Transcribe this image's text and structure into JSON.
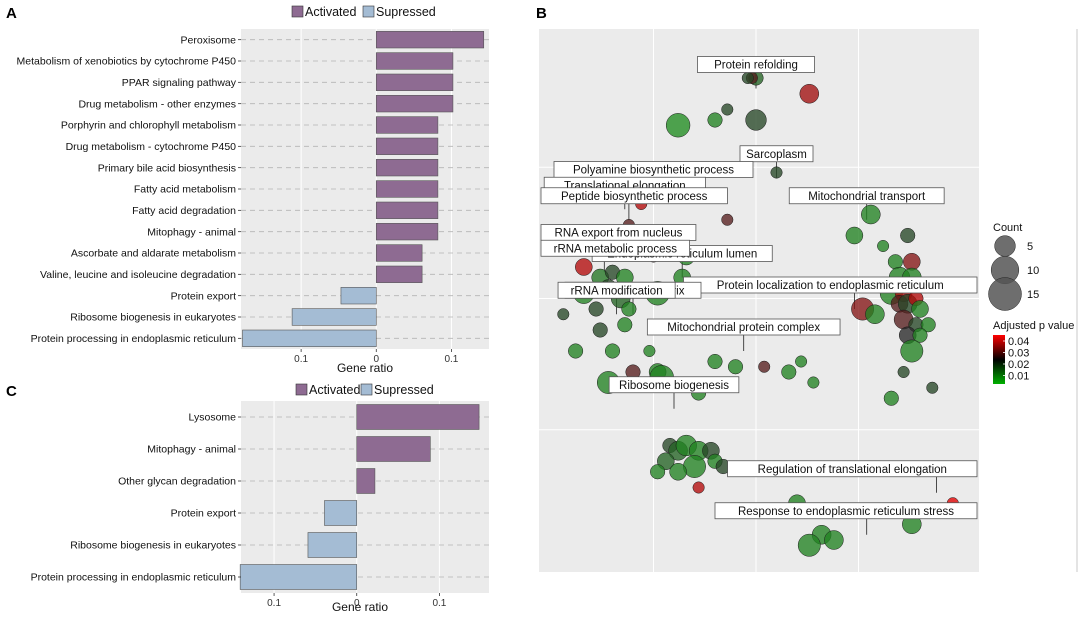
{
  "panels": {
    "A": "A",
    "B": "B",
    "C": "C"
  },
  "colors": {
    "activated": "#8e6b92",
    "suppressed": "#a4bcd4",
    "panel_bg": "#ebebeb",
    "bubble_low_p": "#1f9e1f",
    "bubble_high_p": "#e00000"
  },
  "chart_data": [
    {
      "id": "A",
      "type": "bar",
      "orientation": "horizontal",
      "xlabel": "Gene ratio",
      "xlim": [
        -0.18,
        0.15
      ],
      "xticks": [
        {
          "value": -0.1,
          "label": "0.1"
        },
        {
          "value": 0,
          "label": "0"
        },
        {
          "value": 0.1,
          "label": "0.1"
        }
      ],
      "legend": {
        "activated": "Activated",
        "suppressed": "Supressed",
        "position": "top"
      },
      "categories": [
        "Peroxisome",
        "Metabolism of xenobiotics by cytochrome P450",
        "PPAR signaling pathway",
        "Drug metabolism - other enzymes",
        "Porphyrin and chlorophyll metabolism",
        "Drug metabolism - cytochrome P450",
        "Primary bile acid biosynthesis",
        "Fatty acid metabolism",
        "Fatty acid degradation",
        "Mitophagy - animal",
        "Ascorbate and aldarate metabolism",
        "Valine, leucine and isoleucine degradation",
        "Protein export",
        "Ribosome biogenesis in eukaryotes",
        "Protein processing in endoplasmic reticulum"
      ],
      "values": [
        0.143,
        0.102,
        0.102,
        0.102,
        0.082,
        0.082,
        0.082,
        0.082,
        0.082,
        0.082,
        0.061,
        0.061,
        -0.047,
        -0.112,
        -0.178
      ],
      "status": [
        "activated",
        "activated",
        "activated",
        "activated",
        "activated",
        "activated",
        "activated",
        "activated",
        "activated",
        "activated",
        "activated",
        "activated",
        "suppressed",
        "suppressed",
        "suppressed"
      ]
    },
    {
      "id": "C",
      "type": "bar",
      "orientation": "horizontal",
      "xlabel": "Gene ratio",
      "xlim": [
        -0.14,
        0.16
      ],
      "xticks": [
        {
          "value": -0.1,
          "label": "0.1"
        },
        {
          "value": 0,
          "label": "0"
        },
        {
          "value": 0.1,
          "label": "0.1"
        }
      ],
      "legend": {
        "activated": "Activated",
        "suppressed": "Supressed",
        "position": "top"
      },
      "categories": [
        "Lysosome",
        "Mitophagy - animal",
        "Other glycan degradation",
        "Protein export",
        "Ribosome biogenesis in eukaryotes",
        "Protein processing in endoplasmic reticulum"
      ],
      "values": [
        0.148,
        0.089,
        0.022,
        -0.039,
        -0.059,
        -0.141
      ],
      "status": [
        "activated",
        "activated",
        "activated",
        "suppressed",
        "suppressed",
        "suppressed"
      ]
    },
    {
      "id": "B",
      "type": "scatter",
      "subtype": "bubble",
      "xlim": [
        0,
        100
      ],
      "ylim": [
        0,
        100
      ],
      "size_legend": {
        "title": "Count",
        "values": [
          5,
          10,
          15
        ]
      },
      "color_legend": {
        "title": "Adjusted p value",
        "ticks": [
          "0.04",
          "0.03",
          "0.02",
          "0.01"
        ],
        "range": [
          0.005,
          0.045
        ]
      },
      "labels": [
        {
          "text": "Protein refolding",
          "x": 50,
          "y": 90
        },
        {
          "text": "Sarcoplasm",
          "x": 55,
          "y": 73
        },
        {
          "text": "Polyamine biosynthetic process",
          "x": 25,
          "y": 70
        },
        {
          "text": "Translational elongation",
          "x": 18,
          "y": 67
        },
        {
          "text": "Peptide biosynthetic process",
          "x": 19,
          "y": 65
        },
        {
          "text": "Mitochondrial transport",
          "x": 77,
          "y": 65
        },
        {
          "text": "RNA export from nucleus",
          "x": 10,
          "y": 58
        },
        {
          "text": "Endoplasmic reticulum lumen",
          "x": 32,
          "y": 54
        },
        {
          "text": "rRNA metabolic process",
          "x": 13,
          "y": 55
        },
        {
          "text": "Protein localization to endoplasmic reticulum",
          "x": 74,
          "y": 48
        },
        {
          "text": "Mitochondrial matrix",
          "x": 20,
          "y": 47
        },
        {
          "text": "rRNA modification",
          "x": 16,
          "y": 47
        },
        {
          "text": "Mitochondrial protein complex",
          "x": 47,
          "y": 40
        },
        {
          "text": "Ribosome biogenesis",
          "x": 30,
          "y": 29
        },
        {
          "text": "Regulation of translational elongation",
          "x": 94,
          "y": 13
        },
        {
          "text": "Response to endoplasmic reticulum stress",
          "x": 77,
          "y": 5
        }
      ],
      "points": [
        {
          "x": 50,
          "y": 92,
          "count": 2,
          "p": 0.015
        },
        {
          "x": 49,
          "y": 92,
          "count": 1,
          "p": 0.03
        },
        {
          "x": 48,
          "y": 92,
          "count": 1,
          "p": 0.02
        },
        {
          "x": 63,
          "y": 89,
          "count": 4,
          "p": 0.038
        },
        {
          "x": 50,
          "y": 84,
          "count": 5,
          "p": 0.02
        },
        {
          "x": 31,
          "y": 83,
          "count": 7,
          "p": 0.008
        },
        {
          "x": 40,
          "y": 84,
          "count": 2,
          "p": 0.01
        },
        {
          "x": 43,
          "y": 86,
          "count": 1,
          "p": 0.02
        },
        {
          "x": 55,
          "y": 74,
          "count": 1,
          "p": 0.02
        },
        {
          "x": 22,
          "y": 68,
          "count": 1,
          "p": 0.04
        },
        {
          "x": 26,
          "y": 70,
          "count": 2,
          "p": 0.02
        },
        {
          "x": 19,
          "y": 64,
          "count": 1,
          "p": 0.03
        },
        {
          "x": 21,
          "y": 62,
          "count": 2,
          "p": 0.01
        },
        {
          "x": 23,
          "y": 62,
          "count": 2,
          "p": 0.015
        },
        {
          "x": 20,
          "y": 60,
          "count": 2,
          "p": 0.01
        },
        {
          "x": 17,
          "y": 60,
          "count": 1,
          "p": 0.02
        },
        {
          "x": 12,
          "y": 60,
          "count": 1,
          "p": 0.02
        },
        {
          "x": 25,
          "y": 58,
          "count": 1,
          "p": 0.03
        },
        {
          "x": 8,
          "y": 56,
          "count": 3,
          "p": 0.04
        },
        {
          "x": 12,
          "y": 54,
          "count": 3,
          "p": 0.012
        },
        {
          "x": 15,
          "y": 55,
          "count": 2,
          "p": 0.02
        },
        {
          "x": 18,
          "y": 54,
          "count": 3,
          "p": 0.01
        },
        {
          "x": 14,
          "y": 52,
          "count": 3,
          "p": 0.02
        },
        {
          "x": 17,
          "y": 50,
          "count": 4,
          "p": 0.015
        },
        {
          "x": 8,
          "y": 51,
          "count": 5,
          "p": 0.01
        },
        {
          "x": 11,
          "y": 48,
          "count": 2,
          "p": 0.02
        },
        {
          "x": 19,
          "y": 48,
          "count": 2,
          "p": 0.01
        },
        {
          "x": 26,
          "y": 51,
          "count": 7,
          "p": 0.01
        },
        {
          "x": 32,
          "y": 54,
          "count": 3,
          "p": 0.01
        },
        {
          "x": 33,
          "y": 58,
          "count": 3,
          "p": 0.01
        },
        {
          "x": 3,
          "y": 47,
          "count": 1,
          "p": 0.02
        },
        {
          "x": 12,
          "y": 44,
          "count": 2,
          "p": 0.02
        },
        {
          "x": 18,
          "y": 45,
          "count": 2,
          "p": 0.01
        },
        {
          "x": 6,
          "y": 40,
          "count": 2,
          "p": 0.01
        },
        {
          "x": 15,
          "y": 40,
          "count": 2,
          "p": 0.01
        },
        {
          "x": 24,
          "y": 40,
          "count": 1,
          "p": 0.01
        },
        {
          "x": 20,
          "y": 36,
          "count": 2,
          "p": 0.03
        },
        {
          "x": 26,
          "y": 36,
          "count": 3,
          "p": 0.01
        },
        {
          "x": 27,
          "y": 35,
          "count": 7,
          "p": 0.01
        },
        {
          "x": 14,
          "y": 34,
          "count": 6,
          "p": 0.01
        },
        {
          "x": 40,
          "y": 38,
          "count": 2,
          "p": 0.01
        },
        {
          "x": 45,
          "y": 37,
          "count": 2,
          "p": 0.01
        },
        {
          "x": 52,
          "y": 37,
          "count": 1,
          "p": 0.03
        },
        {
          "x": 58,
          "y": 36,
          "count": 2,
          "p": 0.01
        },
        {
          "x": 61,
          "y": 38,
          "count": 1,
          "p": 0.01
        },
        {
          "x": 64,
          "y": 34,
          "count": 1,
          "p": 0.01
        },
        {
          "x": 36,
          "y": 32,
          "count": 2,
          "p": 0.01
        },
        {
          "x": 43,
          "y": 65,
          "count": 1,
          "p": 0.03
        },
        {
          "x": 78,
          "y": 66,
          "count": 4,
          "p": 0.01
        },
        {
          "x": 74,
          "y": 62,
          "count": 3,
          "p": 0.01
        },
        {
          "x": 87,
          "y": 62,
          "count": 2,
          "p": 0.02
        },
        {
          "x": 81,
          "y": 60,
          "count": 1,
          "p": 0.01
        },
        {
          "x": 84,
          "y": 57,
          "count": 2,
          "p": 0.01
        },
        {
          "x": 88,
          "y": 57,
          "count": 3,
          "p": 0.035
        },
        {
          "x": 85,
          "y": 54,
          "count": 5,
          "p": 0.01
        },
        {
          "x": 88,
          "y": 54,
          "count": 4,
          "p": 0.01
        },
        {
          "x": 83,
          "y": 51,
          "count": 6,
          "p": 0.01
        },
        {
          "x": 86,
          "y": 51,
          "count": 3,
          "p": 0.04
        },
        {
          "x": 85,
          "y": 49,
          "count": 3,
          "p": 0.03
        },
        {
          "x": 87,
          "y": 49,
          "count": 4,
          "p": 0.02
        },
        {
          "x": 89,
          "y": 50,
          "count": 2,
          "p": 0.04
        },
        {
          "x": 90,
          "y": 48,
          "count": 3,
          "p": 0.01
        },
        {
          "x": 76,
          "y": 48,
          "count": 6,
          "p": 0.035
        },
        {
          "x": 79,
          "y": 47,
          "count": 4,
          "p": 0.01
        },
        {
          "x": 86,
          "y": 46,
          "count": 4,
          "p": 0.03
        },
        {
          "x": 89,
          "y": 45,
          "count": 2,
          "p": 0.02
        },
        {
          "x": 92,
          "y": 45,
          "count": 2,
          "p": 0.01
        },
        {
          "x": 87,
          "y": 43,
          "count": 3,
          "p": 0.025
        },
        {
          "x": 90,
          "y": 43,
          "count": 2,
          "p": 0.01
        },
        {
          "x": 88,
          "y": 40,
          "count": 6,
          "p": 0.01
        },
        {
          "x": 86,
          "y": 36,
          "count": 1,
          "p": 0.02
        },
        {
          "x": 83,
          "y": 31,
          "count": 2,
          "p": 0.01
        },
        {
          "x": 93,
          "y": 33,
          "count": 1,
          "p": 0.02
        },
        {
          "x": 29,
          "y": 22,
          "count": 2,
          "p": 0.02
        },
        {
          "x": 31,
          "y": 21,
          "count": 4,
          "p": 0.015
        },
        {
          "x": 33,
          "y": 22,
          "count": 5,
          "p": 0.01
        },
        {
          "x": 36,
          "y": 21,
          "count": 4,
          "p": 0.01
        },
        {
          "x": 39,
          "y": 21,
          "count": 3,
          "p": 0.02
        },
        {
          "x": 28,
          "y": 19,
          "count": 3,
          "p": 0.015
        },
        {
          "x": 35,
          "y": 18,
          "count": 6,
          "p": 0.01
        },
        {
          "x": 40,
          "y": 19,
          "count": 2,
          "p": 0.01
        },
        {
          "x": 31,
          "y": 17,
          "count": 3,
          "p": 0.01
        },
        {
          "x": 26,
          "y": 17,
          "count": 2,
          "p": 0.01
        },
        {
          "x": 42,
          "y": 18,
          "count": 2,
          "p": 0.02
        },
        {
          "x": 36,
          "y": 14,
          "count": 1,
          "p": 0.04
        },
        {
          "x": 60,
          "y": 11,
          "count": 3,
          "p": 0.01
        },
        {
          "x": 98,
          "y": 11,
          "count": 1,
          "p": 0.045
        },
        {
          "x": 88,
          "y": 7,
          "count": 4,
          "p": 0.01
        },
        {
          "x": 66,
          "y": 5,
          "count": 4,
          "p": 0.01
        },
        {
          "x": 69,
          "y": 4,
          "count": 4,
          "p": 0.01
        },
        {
          "x": 63,
          "y": 3,
          "count": 6,
          "p": 0.01
        }
      ]
    }
  ]
}
